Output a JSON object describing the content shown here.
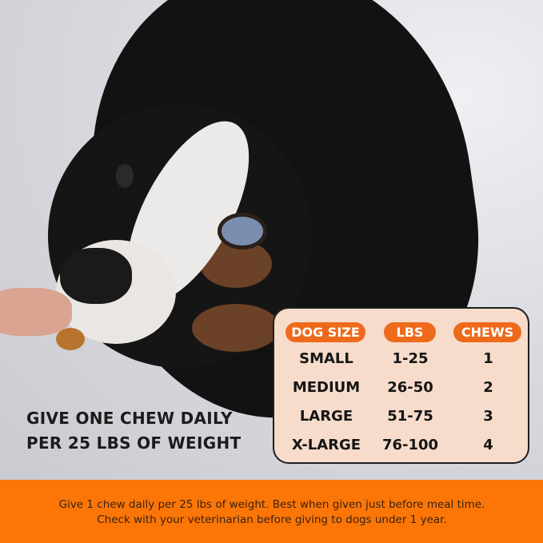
{
  "headline": {
    "line1": "GIVE ONE CHEW DAILY",
    "line2": "PER 25 LBS OF WEIGHT"
  },
  "dosage_table": {
    "headers": [
      "DOG SIZE",
      "LBS",
      "CHEWS"
    ],
    "rows": [
      [
        "SMALL",
        "1-25",
        "1"
      ],
      [
        "MEDIUM",
        "26-50",
        "2"
      ],
      [
        "LARGE",
        "51-75",
        "3"
      ],
      [
        "X-LARGE",
        "76-100",
        "4"
      ]
    ]
  },
  "footer": {
    "text": "Give 1 chew daily per 25 lbs of weight. Best when given just before meal time. Check with your veterinarian before giving to dogs under 1 year."
  },
  "colors": {
    "accent": "#fb7607",
    "header_pill": "#ee6a1a",
    "card": "#f7dccb"
  }
}
